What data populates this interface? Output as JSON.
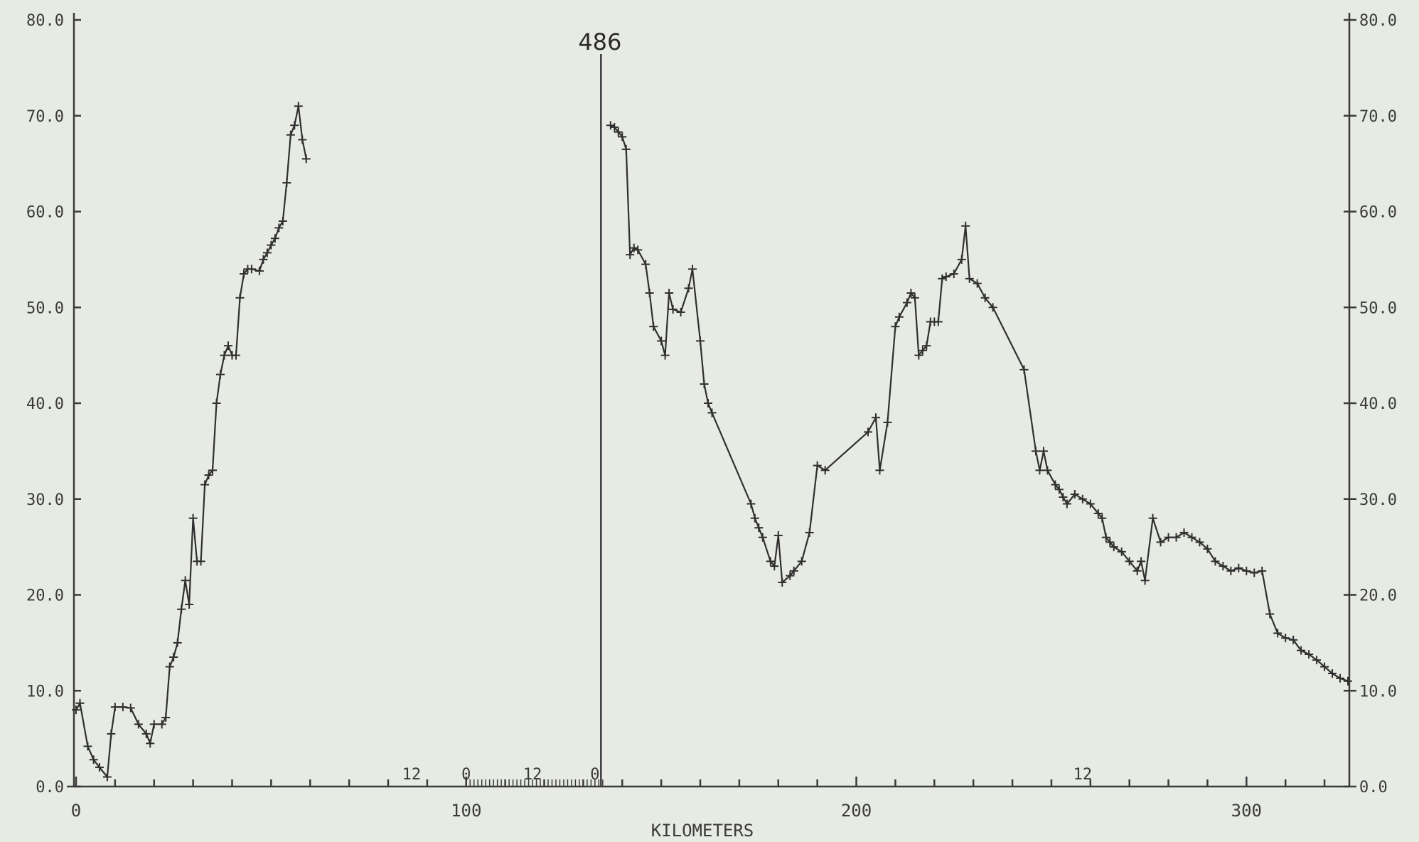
{
  "chart_data": {
    "type": "line",
    "title": "",
    "xlabel": "KILOMETERS",
    "ylabel": "",
    "xlim": [
      -2,
      326
    ],
    "ylim": [
      0,
      80
    ],
    "x_ticks": [
      "0",
      "100",
      "200",
      "300"
    ],
    "y_ticks_left": [
      "0.0",
      "10.0",
      "20.0",
      "30.0",
      "40.0",
      "50.0",
      "60.0",
      "70.0",
      "80.0"
    ],
    "y_ticks_right": [
      "0.0",
      "10.0",
      "20.0",
      "30.0",
      "40.0",
      "50.0",
      "60.0",
      "70.0",
      "80.0"
    ],
    "annotations": {
      "divider_label": "486",
      "divider_x": 136,
      "segment_marks": [
        "12",
        "0",
        "12",
        "0",
        "12"
      ]
    },
    "series": [
      {
        "values": [
          [
            0,
            8
          ],
          [
            1,
            8.7
          ],
          [
            3,
            4.2
          ],
          [
            4.5,
            2.8
          ],
          [
            6,
            2
          ],
          [
            8,
            1
          ],
          [
            9,
            5.5
          ],
          [
            10,
            8.3
          ],
          [
            12,
            8.3
          ],
          [
            14,
            8.2
          ],
          [
            16,
            6.5
          ],
          [
            18,
            5.5
          ],
          [
            19,
            4.5
          ],
          [
            20,
            6.5
          ],
          [
            22,
            6.5
          ],
          [
            23,
            7.2
          ],
          [
            24,
            12.5
          ],
          [
            25,
            13.5
          ],
          [
            26,
            15
          ],
          [
            27,
            18.5
          ],
          [
            28,
            21.5
          ],
          [
            29,
            19
          ],
          [
            30,
            28
          ],
          [
            31,
            23.5
          ],
          [
            32,
            23.5
          ],
          [
            33,
            31.5
          ],
          [
            34,
            32.5
          ],
          [
            35,
            33
          ],
          [
            36,
            40
          ],
          [
            37,
            43
          ],
          [
            38,
            45
          ],
          [
            39,
            46
          ],
          [
            40,
            45
          ],
          [
            41,
            45
          ],
          [
            42,
            51
          ],
          [
            43,
            53.5
          ],
          [
            44,
            54
          ],
          [
            45,
            54
          ],
          [
            47,
            53.8
          ],
          [
            48,
            55
          ],
          [
            49,
            55.7
          ],
          [
            50,
            56.5
          ],
          [
            51,
            57.2
          ],
          [
            52,
            58.3
          ],
          [
            53,
            59
          ],
          [
            54,
            63
          ],
          [
            55,
            68
          ],
          [
            56,
            69
          ],
          [
            57,
            71
          ],
          [
            58,
            67.5
          ],
          [
            59,
            65.5
          ]
        ]
      },
      {
        "values": [
          [
            137,
            69
          ],
          [
            138,
            68.8
          ],
          [
            139,
            68.3
          ],
          [
            140,
            67.8
          ],
          [
            141,
            66.5
          ],
          [
            142,
            55.5
          ],
          [
            143,
            56.2
          ],
          [
            144,
            56
          ],
          [
            146,
            54.5
          ],
          [
            147,
            51.5
          ],
          [
            148,
            48
          ],
          [
            150,
            46.5
          ],
          [
            151,
            45
          ],
          [
            152,
            51.5
          ],
          [
            153,
            49.8
          ],
          [
            155,
            49.5
          ],
          [
            157,
            52
          ],
          [
            158,
            54
          ],
          [
            160,
            46.5
          ],
          [
            161,
            42
          ],
          [
            162,
            40
          ],
          [
            163,
            39
          ],
          [
            173,
            29.5
          ],
          [
            174,
            28
          ],
          [
            175,
            27
          ],
          [
            176,
            26
          ],
          [
            178,
            23.5
          ],
          [
            179,
            23
          ],
          [
            180,
            26.2
          ],
          [
            181,
            21.3
          ],
          [
            183,
            22
          ],
          [
            184,
            22.5
          ],
          [
            186,
            23.5
          ],
          [
            188,
            26.5
          ],
          [
            190,
            33.5
          ],
          [
            192,
            33
          ],
          [
            203,
            37
          ],
          [
            205,
            38.5
          ],
          [
            206,
            33
          ],
          [
            208,
            38
          ],
          [
            210,
            48
          ],
          [
            211,
            49
          ],
          [
            213,
            50.5
          ],
          [
            214,
            51.5
          ],
          [
            215,
            51
          ],
          [
            216,
            45
          ],
          [
            217,
            45.5
          ],
          [
            218,
            46
          ],
          [
            219,
            48.5
          ],
          [
            220,
            48.5
          ],
          [
            221,
            48.5
          ],
          [
            222,
            53
          ],
          [
            223,
            53.2
          ],
          [
            225,
            53.5
          ],
          [
            227,
            55
          ],
          [
            228,
            58.5
          ],
          [
            229,
            53
          ],
          [
            231,
            52.5
          ],
          [
            233,
            51
          ],
          [
            235,
            50
          ],
          [
            243,
            43.5
          ],
          [
            246,
            35
          ],
          [
            247,
            33
          ],
          [
            248,
            35
          ],
          [
            249,
            33
          ],
          [
            251,
            31.5
          ],
          [
            252,
            31
          ],
          [
            253,
            30.2
          ],
          [
            254,
            29.5
          ],
          [
            256,
            30.5
          ],
          [
            258,
            30
          ],
          [
            260,
            29.5
          ],
          [
            262,
            28.5
          ],
          [
            263,
            28
          ],
          [
            264,
            26
          ],
          [
            265,
            25.5
          ],
          [
            266,
            25
          ],
          [
            268,
            24.5
          ],
          [
            270,
            23.5
          ],
          [
            272,
            22.5
          ],
          [
            273,
            23.5
          ],
          [
            274,
            21.5
          ],
          [
            276,
            28
          ],
          [
            278,
            25.5
          ],
          [
            280,
            26
          ],
          [
            282,
            26
          ],
          [
            284,
            26.5
          ],
          [
            286,
            26
          ],
          [
            288,
            25.5
          ],
          [
            290,
            24.8
          ],
          [
            292,
            23.5
          ],
          [
            294,
            23
          ],
          [
            296,
            22.5
          ],
          [
            298,
            22.8
          ],
          [
            300,
            22.5
          ],
          [
            302,
            22.3
          ],
          [
            304,
            22.5
          ],
          [
            306,
            18
          ],
          [
            308,
            16
          ],
          [
            310,
            15.5
          ],
          [
            312,
            15.3
          ],
          [
            314,
            14.2
          ],
          [
            316,
            13.8
          ],
          [
            318,
            13.2
          ],
          [
            320,
            12.5
          ],
          [
            322,
            11.8
          ],
          [
            324,
            11.3
          ],
          [
            326,
            11
          ]
        ]
      }
    ]
  }
}
